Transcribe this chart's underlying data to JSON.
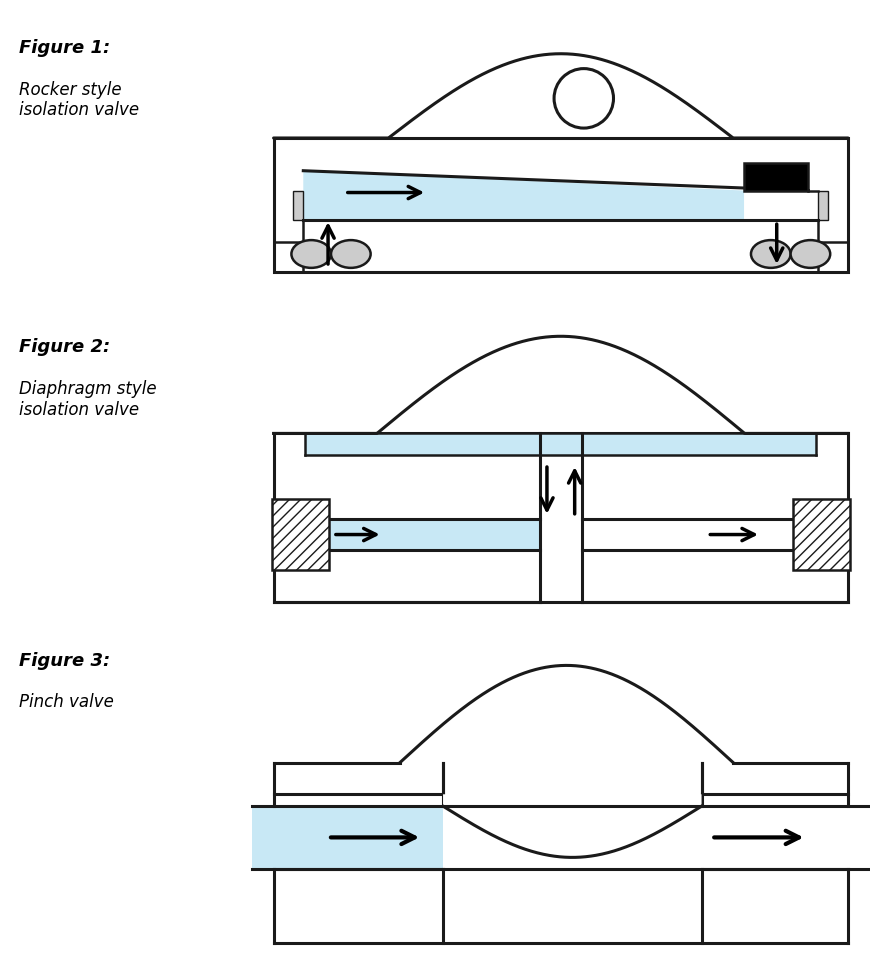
{
  "light_blue": "#c8e8f5",
  "dark_outline": "#1a1a1a",
  "gray_fill": "#b8b8b8",
  "light_gray": "#cccccc",
  "black": "#000000",
  "white": "#ffffff",
  "fig1_label": "Figure 1:",
  "fig1_sub": "Rocker style\nisolation valve",
  "fig2_label": "Figure 2:",
  "fig2_sub": "Diaphragm style\nisolation valve",
  "fig3_label": "Figure 3:",
  "fig3_sub": "Pinch valve",
  "lw_main": 1.8,
  "lw_thick": 2.2
}
